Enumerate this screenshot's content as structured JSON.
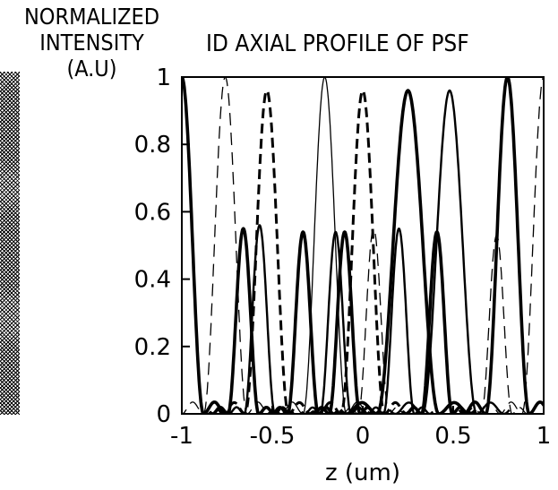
{
  "chart_data": {
    "type": "line",
    "title": "ID AXIAL PROFILE OF PSF",
    "ylabel": [
      "NORMALIZED",
      "INTENSITY",
      "(A.U)"
    ],
    "xlabel": "z (um)",
    "xlim": [
      -1,
      1
    ],
    "ylim": [
      0,
      1
    ],
    "xticks": [
      -1,
      -0.5,
      0,
      0.5,
      1
    ],
    "xtick_labels": [
      "-1",
      "-0.5",
      "0",
      "0.5",
      "1"
    ],
    "yticks": [
      0,
      0.2,
      0.4,
      0.6,
      0.8,
      1
    ],
    "ytick_labels": [
      "0",
      "0.2",
      "0.4",
      "0.6",
      "0.8",
      "1"
    ],
    "grid": false,
    "series": [
      {
        "values": [
          {
            "center": -1.0,
            "peak": 1.0
          },
          {
            "center": 0.8,
            "peak": 1.0
          }
        ],
        "width": 0.12,
        "style": "thick"
      },
      {
        "values": [
          {
            "center": -0.76,
            "peak": 1.0
          },
          {
            "center": 1.0,
            "peak": 1.0
          }
        ],
        "width": 0.12,
        "style": "thin-dashed"
      },
      {
        "values": [
          {
            "center": -0.53,
            "peak": 0.96
          }
        ],
        "width": 0.12,
        "style": "dashed"
      },
      {
        "values": [
          {
            "center": -0.21,
            "peak": 1.0
          }
        ],
        "width": 0.12,
        "style": "thin"
      },
      {
        "values": [
          {
            "center": 0.0,
            "peak": 0.96
          }
        ],
        "width": 0.12,
        "style": "dashed"
      },
      {
        "values": [
          {
            "center": 0.25,
            "peak": 0.96
          }
        ],
        "width": 0.17,
        "style": "thick"
      },
      {
        "values": [
          {
            "center": 0.48,
            "peak": 0.96
          }
        ],
        "width": 0.15,
        "style": "medium"
      },
      {
        "values": [
          {
            "center": -0.66,
            "peak": 0.55
          },
          {
            "center": -0.33,
            "peak": 0.54
          },
          {
            "center": -0.1,
            "peak": 0.54
          },
          {
            "center": 0.41,
            "peak": 0.54
          }
        ],
        "width": 0.085,
        "style": "thick"
      },
      {
        "values": [
          {
            "center": -0.57,
            "peak": 0.56
          },
          {
            "center": -0.15,
            "peak": 0.54
          },
          {
            "center": 0.2,
            "peak": 0.55
          }
        ],
        "width": 0.085,
        "style": "medium"
      },
      {
        "values": [
          {
            "center": 0.06,
            "peak": 0.55
          },
          {
            "center": 0.74,
            "peak": 0.53
          }
        ],
        "width": 0.085,
        "style": "thin-dashed"
      }
    ]
  }
}
